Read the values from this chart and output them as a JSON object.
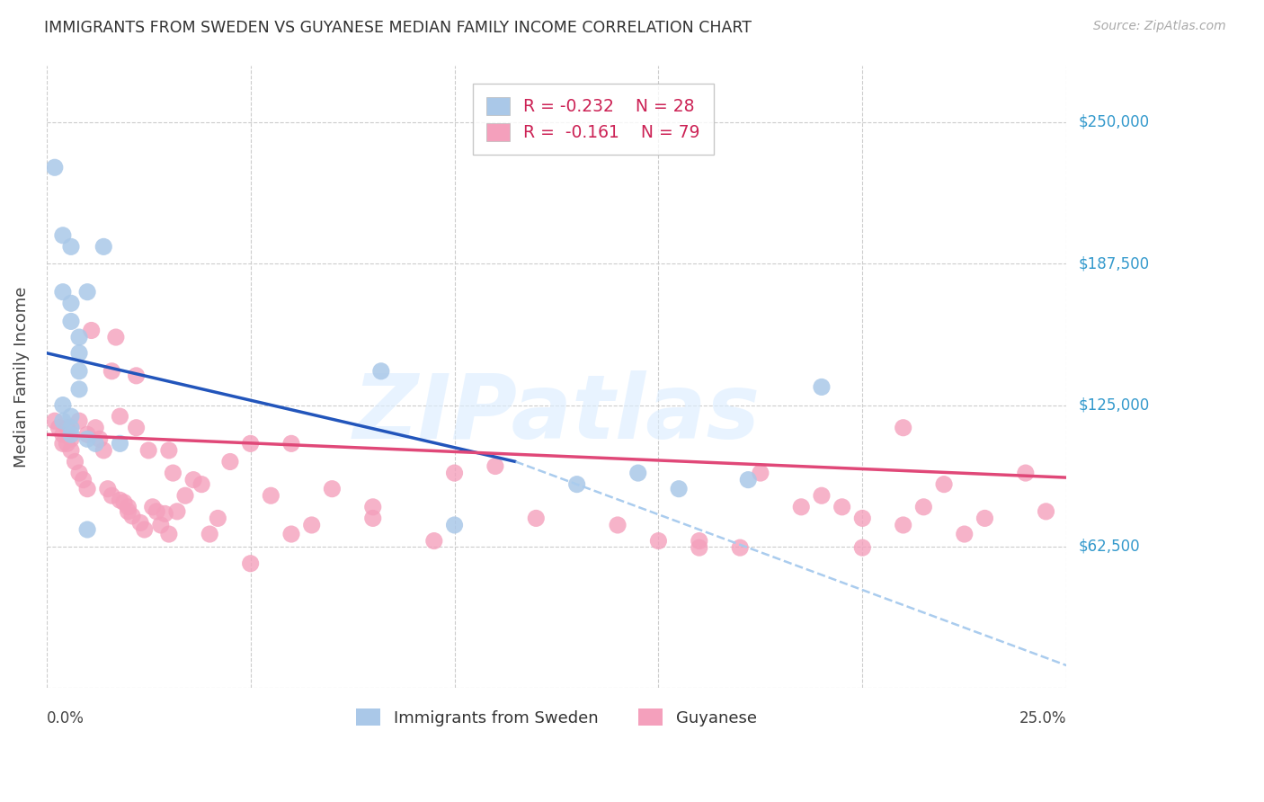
{
  "title": "IMMIGRANTS FROM SWEDEN VS GUYANESE MEDIAN FAMILY INCOME CORRELATION CHART",
  "source": "Source: ZipAtlas.com",
  "ylabel": "Median Family Income",
  "yticks": [
    0,
    62500,
    125000,
    187500,
    250000
  ],
  "ytick_labels": [
    "",
    "$62,500",
    "$125,000",
    "$187,500",
    "$250,000"
  ],
  "xmin": 0.0,
  "xmax": 0.25,
  "ymin": 0,
  "ymax": 275000,
  "legend_r_sweden": "R = -0.232",
  "legend_n_sweden": "N = 28",
  "legend_r_guyanese": "R =  -0.161",
  "legend_n_guyanese": "N = 79",
  "sweden_color": "#aac8e8",
  "guyanese_color": "#f4a0bc",
  "trend_sweden_solid_color": "#2255bb",
  "trend_guyanese_color": "#e04878",
  "trend_dashed_color": "#aaccee",
  "watermark_text": "ZIPatlas",
  "watermark_color": "#ddeeff",
  "background_color": "#ffffff",
  "grid_color": "#cccccc",
  "ytick_color": "#3399cc",
  "sweden_x": [
    0.002,
    0.004,
    0.006,
    0.01,
    0.014,
    0.004,
    0.006,
    0.006,
    0.008,
    0.008,
    0.008,
    0.008,
    0.004,
    0.006,
    0.004,
    0.006,
    0.006,
    0.01,
    0.012,
    0.018,
    0.082,
    0.1,
    0.13,
    0.145,
    0.155,
    0.172,
    0.19,
    0.01
  ],
  "sweden_y": [
    230000,
    200000,
    195000,
    175000,
    195000,
    175000,
    170000,
    162000,
    155000,
    148000,
    140000,
    132000,
    125000,
    120000,
    118000,
    115000,
    112000,
    110000,
    108000,
    108000,
    140000,
    72000,
    90000,
    95000,
    88000,
    92000,
    133000,
    70000
  ],
  "guyanese_x": [
    0.002,
    0.003,
    0.004,
    0.004,
    0.005,
    0.005,
    0.006,
    0.006,
    0.007,
    0.008,
    0.008,
    0.009,
    0.01,
    0.01,
    0.011,
    0.012,
    0.013,
    0.014,
    0.015,
    0.016,
    0.016,
    0.017,
    0.018,
    0.018,
    0.019,
    0.02,
    0.02,
    0.021,
    0.022,
    0.022,
    0.023,
    0.024,
    0.025,
    0.026,
    0.027,
    0.028,
    0.029,
    0.03,
    0.03,
    0.031,
    0.032,
    0.034,
    0.036,
    0.038,
    0.04,
    0.042,
    0.045,
    0.05,
    0.055,
    0.06,
    0.065,
    0.07,
    0.08,
    0.095,
    0.1,
    0.11,
    0.12,
    0.14,
    0.15,
    0.16,
    0.175,
    0.185,
    0.19,
    0.2,
    0.21,
    0.215,
    0.22,
    0.225,
    0.23,
    0.24,
    0.245,
    0.05,
    0.06,
    0.08,
    0.16,
    0.17,
    0.195,
    0.2,
    0.21
  ],
  "guyanese_y": [
    118000,
    115000,
    112000,
    108000,
    115000,
    108000,
    110000,
    105000,
    100000,
    118000,
    95000,
    92000,
    112000,
    88000,
    158000,
    115000,
    110000,
    105000,
    88000,
    140000,
    85000,
    155000,
    83000,
    120000,
    82000,
    80000,
    78000,
    76000,
    138000,
    115000,
    73000,
    70000,
    105000,
    80000,
    78000,
    72000,
    77000,
    105000,
    68000,
    95000,
    78000,
    85000,
    92000,
    90000,
    68000,
    75000,
    100000,
    108000,
    85000,
    68000,
    72000,
    88000,
    75000,
    65000,
    95000,
    98000,
    75000,
    72000,
    65000,
    62000,
    95000,
    80000,
    85000,
    62000,
    115000,
    80000,
    90000,
    68000,
    75000,
    95000,
    78000,
    55000,
    108000,
    80000,
    65000,
    62000,
    80000,
    75000,
    72000
  ]
}
